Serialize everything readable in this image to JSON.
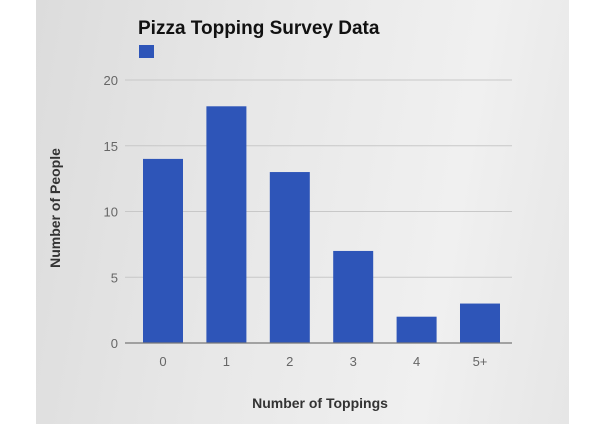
{
  "chart_data": {
    "type": "bar",
    "title": "Pizza Topping Survey Data",
    "xlabel": "Number of Toppings",
    "ylabel": "Number of People",
    "categories": [
      "0",
      "1",
      "2",
      "3",
      "4",
      "5+"
    ],
    "values": [
      14,
      18,
      13,
      7,
      2,
      3
    ],
    "ylim": [
      0,
      20
    ],
    "yticks": [
      "0",
      "5",
      "10",
      "15",
      "20"
    ],
    "grid": true,
    "legend_placement": "top-left",
    "colors": {
      "bar": "#2e55b8",
      "grid": "#c8c8c8",
      "axis": "#777777"
    }
  }
}
